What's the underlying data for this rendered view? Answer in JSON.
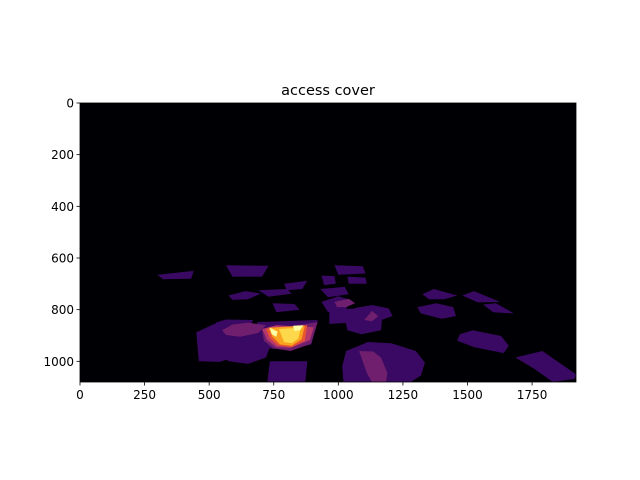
{
  "chart_data": {
    "type": "heatmap",
    "title": "access cover",
    "xlabel": "",
    "ylabel": "",
    "xlim": [
      0,
      1920
    ],
    "ylim": [
      1080,
      0
    ],
    "y_inverted": true,
    "x_ticks": [
      0,
      250,
      500,
      750,
      1000,
      1250,
      1500,
      1750
    ],
    "y_ticks": [
      0,
      200,
      400,
      600,
      800,
      1000
    ],
    "colormap": "inferno",
    "background_color": "#000004",
    "grid": false,
    "legend": "none",
    "regions": [
      {
        "color": "#3a0963",
        "points": [
          [
            300,
            665
          ],
          [
            440,
            650
          ],
          [
            430,
            680
          ],
          [
            320,
            682
          ]
        ]
      },
      {
        "color": "#3a0963",
        "points": [
          [
            565,
            628
          ],
          [
            730,
            630
          ],
          [
            705,
            672
          ],
          [
            590,
            672
          ]
        ]
      },
      {
        "color": "#3a0963",
        "points": [
          [
            575,
            745
          ],
          [
            640,
            728
          ],
          [
            700,
            738
          ],
          [
            650,
            760
          ],
          [
            590,
            762
          ]
        ]
      },
      {
        "color": "#3a0963",
        "points": [
          [
            690,
            725
          ],
          [
            800,
            720
          ],
          [
            820,
            738
          ],
          [
            730,
            750
          ]
        ]
      },
      {
        "color": "#3a0963",
        "points": [
          [
            790,
            700
          ],
          [
            880,
            688
          ],
          [
            860,
            720
          ],
          [
            800,
            725
          ]
        ]
      },
      {
        "color": "#3a0963",
        "points": [
          [
            935,
            668
          ],
          [
            985,
            670
          ],
          [
            990,
            700
          ],
          [
            945,
            705
          ]
        ]
      },
      {
        "color": "#3a0963",
        "points": [
          [
            985,
            628
          ],
          [
            1095,
            632
          ],
          [
            1105,
            660
          ],
          [
            1000,
            665
          ]
        ]
      },
      {
        "color": "#3a0963",
        "points": [
          [
            1035,
            672
          ],
          [
            1105,
            676
          ],
          [
            1110,
            700
          ],
          [
            1040,
            700
          ]
        ]
      },
      {
        "color": "#3a0963",
        "points": [
          [
            930,
            720
          ],
          [
            1025,
            712
          ],
          [
            1040,
            740
          ],
          [
            960,
            752
          ]
        ]
      },
      {
        "color": "#3a0963",
        "points": [
          [
            935,
            770
          ],
          [
            1000,
            748
          ],
          [
            1045,
            762
          ],
          [
            1030,
            800
          ],
          [
            960,
            810
          ]
        ]
      },
      {
        "color": "#3a0963",
        "points": [
          [
            745,
            775
          ],
          [
            830,
            778
          ],
          [
            850,
            800
          ],
          [
            760,
            810
          ]
        ]
      },
      {
        "color": "#3a0963",
        "points": [
          [
            1325,
            740
          ],
          [
            1370,
            720
          ],
          [
            1460,
            745
          ],
          [
            1410,
            760
          ],
          [
            1350,
            760
          ]
        ]
      },
      {
        "color": "#3a0963",
        "points": [
          [
            1480,
            745
          ],
          [
            1525,
            728
          ],
          [
            1625,
            770
          ],
          [
            1540,
            772
          ]
        ]
      },
      {
        "color": "#3a0963",
        "points": [
          [
            1560,
            780
          ],
          [
            1610,
            775
          ],
          [
            1680,
            815
          ],
          [
            1600,
            810
          ]
        ]
      },
      {
        "color": "#3a0963",
        "points": [
          [
            1305,
            790
          ],
          [
            1380,
            775
          ],
          [
            1445,
            790
          ],
          [
            1455,
            825
          ],
          [
            1400,
            835
          ],
          [
            1320,
            815
          ]
        ]
      },
      {
        "color": "#3a0963",
        "points": [
          [
            1470,
            895
          ],
          [
            1520,
            880
          ],
          [
            1630,
            902
          ],
          [
            1660,
            940
          ],
          [
            1640,
            968
          ],
          [
            1525,
            945
          ],
          [
            1460,
            920
          ]
        ]
      },
      {
        "color": "#3a0963",
        "points": [
          [
            1685,
            985
          ],
          [
            1790,
            960
          ],
          [
            1920,
            1050
          ],
          [
            1915,
            1068
          ],
          [
            1830,
            1080
          ],
          [
            1760,
            1030
          ]
        ]
      },
      {
        "color": "#3a0963",
        "points": [
          [
            965,
            800
          ],
          [
            1060,
            796
          ],
          [
            1080,
            790
          ],
          [
            1125,
            795
          ],
          [
            1120,
            835
          ],
          [
            1060,
            850
          ],
          [
            965,
            855
          ]
        ]
      },
      {
        "color": "#3a0963",
        "points": [
          [
            1085,
            790
          ],
          [
            1130,
            782
          ],
          [
            1195,
            795
          ],
          [
            1210,
            825
          ],
          [
            1165,
            840
          ],
          [
            1110,
            840
          ]
        ]
      },
      {
        "color": "#3a0963",
        "points": [
          [
            1025,
            835
          ],
          [
            1090,
            818
          ],
          [
            1170,
            825
          ],
          [
            1165,
            880
          ],
          [
            1090,
            895
          ],
          [
            1035,
            880
          ]
        ]
      },
      {
        "color": "#3a0963",
        "points": [
          [
            450,
            888
          ],
          [
            520,
            855
          ],
          [
            580,
            845
          ],
          [
            600,
            900
          ],
          [
            580,
            990
          ],
          [
            540,
            1002
          ],
          [
            460,
            1000
          ]
        ]
      },
      {
        "color": "#3a0963",
        "points": [
          [
            530,
            905
          ],
          [
            575,
            870
          ],
          [
            630,
            860
          ],
          [
            700,
            872
          ],
          [
            740,
            930
          ],
          [
            720,
            985
          ],
          [
            650,
            1010
          ],
          [
            575,
            1000
          ],
          [
            540,
            970
          ]
        ]
      },
      {
        "color": "#3a0963",
        "points": [
          [
            525,
            850
          ],
          [
            565,
            838
          ],
          [
            670,
            840
          ],
          [
            640,
            905
          ],
          [
            580,
            915
          ],
          [
            540,
            890
          ]
        ]
      },
      {
        "color": "#3a0963",
        "points": [
          [
            1030,
            960
          ],
          [
            1115,
            925
          ],
          [
            1205,
            930
          ],
          [
            1300,
            960
          ],
          [
            1335,
            1005
          ],
          [
            1320,
            1055
          ],
          [
            1280,
            1080
          ],
          [
            1020,
            1080
          ],
          [
            1015,
            1020
          ]
        ]
      },
      {
        "color": "#3a0963",
        "points": [
          [
            735,
            1000
          ],
          [
            880,
            1000
          ],
          [
            872,
            1080
          ],
          [
            725,
            1080
          ]
        ]
      },
      {
        "color": "#3a0963",
        "points": [
          [
            685,
            848
          ],
          [
            920,
            840
          ],
          [
            895,
            935
          ],
          [
            800,
            955
          ],
          [
            730,
            950
          ],
          [
            690,
            900
          ]
        ]
      },
      {
        "color": "#6f1f6d",
        "points": [
          [
            985,
            770
          ],
          [
            1040,
            758
          ],
          [
            1065,
            775
          ],
          [
            1030,
            790
          ],
          [
            995,
            790
          ]
        ]
      },
      {
        "color": "#6f1f6d",
        "points": [
          [
            1130,
            805
          ],
          [
            1155,
            825
          ],
          [
            1130,
            845
          ],
          [
            1100,
            840
          ]
        ]
      },
      {
        "color": "#6f1f6d",
        "points": [
          [
            1080,
            960
          ],
          [
            1135,
            962
          ],
          [
            1165,
            985
          ],
          [
            1190,
            1045
          ],
          [
            1185,
            1080
          ],
          [
            1130,
            1080
          ],
          [
            1110,
            1045
          ]
        ]
      },
      {
        "color": "#6f1f6d",
        "points": [
          [
            550,
            880
          ],
          [
            590,
            858
          ],
          [
            650,
            850
          ],
          [
            720,
            860
          ],
          [
            690,
            890
          ],
          [
            620,
            905
          ],
          [
            565,
            898
          ]
        ]
      },
      {
        "color": "#6f1f6d",
        "points": [
          [
            705,
            880
          ],
          [
            920,
            848
          ],
          [
            895,
            932
          ],
          [
            815,
            960
          ],
          [
            748,
            950
          ],
          [
            712,
            920
          ]
        ]
      },
      {
        "color": "#b5376b",
        "points": [
          [
            705,
            875
          ],
          [
            760,
            860
          ],
          [
            905,
            868
          ],
          [
            890,
            918
          ],
          [
            815,
            948
          ],
          [
            760,
            945
          ],
          [
            725,
            918
          ]
        ]
      },
      {
        "color": "#e8562f",
        "points": [
          [
            720,
            875
          ],
          [
            880,
            860
          ],
          [
            870,
            920
          ],
          [
            820,
            945
          ],
          [
            765,
            938
          ],
          [
            735,
            910
          ]
        ]
      },
      {
        "color": "#f9a31e",
        "points": [
          [
            730,
            870
          ],
          [
            870,
            862
          ],
          [
            858,
            915
          ],
          [
            820,
            940
          ],
          [
            775,
            935
          ],
          [
            745,
            905
          ]
        ]
      },
      {
        "color": "#fcd84a",
        "points": [
          [
            770,
            875
          ],
          [
            855,
            870
          ],
          [
            845,
            912
          ],
          [
            820,
            930
          ],
          [
            790,
            925
          ]
        ]
      },
      {
        "color": "#fcffa4",
        "points": [
          [
            735,
            870
          ],
          [
            765,
            885
          ],
          [
            760,
            905
          ],
          [
            742,
            895
          ]
        ]
      },
      {
        "color": "#fcffa4",
        "points": [
          [
            825,
            862
          ],
          [
            865,
            860
          ],
          [
            852,
            880
          ],
          [
            830,
            882
          ]
        ]
      }
    ]
  }
}
